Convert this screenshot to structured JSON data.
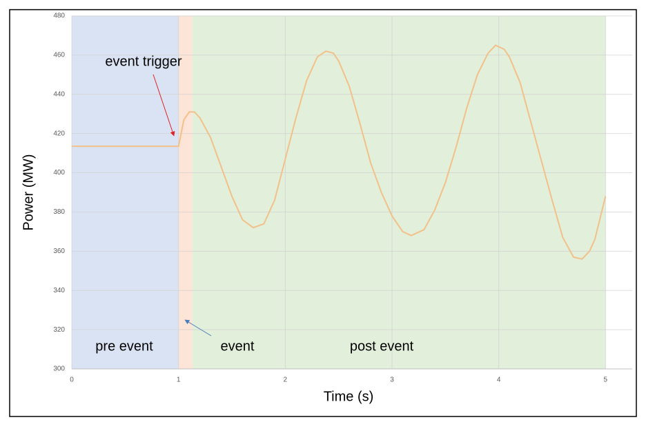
{
  "chart_data": {
    "type": "line",
    "x_label": "Time (s)",
    "y_label": "Power (MW)",
    "x": [
      0,
      0.5,
      1.0,
      1.05,
      1.1,
      1.15,
      1.2,
      1.3,
      1.4,
      1.5,
      1.6,
      1.7,
      1.8,
      1.9,
      2.0,
      2.1,
      2.2,
      2.3,
      2.38,
      2.45,
      2.5,
      2.6,
      2.7,
      2.8,
      2.9,
      3.0,
      3.1,
      3.18,
      3.3,
      3.4,
      3.5,
      3.6,
      3.7,
      3.8,
      3.9,
      3.97,
      4.05,
      4.1,
      4.2,
      4.3,
      4.4,
      4.5,
      4.6,
      4.7,
      4.78,
      4.85,
      4.9,
      5.0
    ],
    "series": [
      {
        "color": "#f2c089",
        "values": [
          413.5,
          413.5,
          413.5,
          427,
          431,
          431,
          428,
          418,
          403,
          388,
          376,
          372,
          374,
          386,
          407,
          428,
          447,
          459,
          462,
          461,
          457,
          444,
          425,
          405,
          390,
          378,
          370,
          368,
          371,
          381,
          395,
          413,
          433,
          450,
          461,
          465,
          463,
          459,
          446,
          426,
          406,
          386,
          367,
          357,
          356,
          360,
          366,
          388
        ]
      }
    ],
    "regions": [
      {
        "label": "pre event",
        "start": 0,
        "end": 1,
        "color": "#dae3f3"
      },
      {
        "label": "event",
        "start": 1,
        "end": 1.13,
        "color": "#fce4d6"
      },
      {
        "label": "post event",
        "start": 1.13,
        "end": 5,
        "color": "#e2efda"
      }
    ],
    "annotations": [
      "event trigger"
    ],
    "xlim": [
      0,
      5.25
    ],
    "xticks": [
      0,
      1,
      2,
      3,
      4,
      5
    ],
    "ylim": [
      300,
      480
    ],
    "yticks": [
      300,
      320,
      340,
      360,
      380,
      400,
      420,
      440,
      460,
      480
    ],
    "grid": true
  }
}
